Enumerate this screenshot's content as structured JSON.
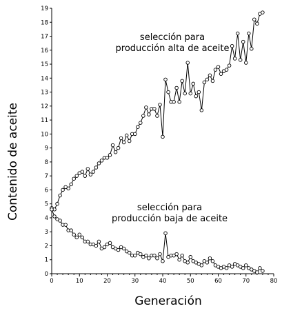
{
  "chart_data": {
    "type": "line",
    "xlabel": "Generación",
    "ylabel": "Contenido de aceite",
    "xlim": [
      0,
      80
    ],
    "ylim": [
      0,
      19
    ],
    "xticks": [
      0,
      10,
      20,
      30,
      40,
      50,
      60,
      70,
      80
    ],
    "yticks": [
      0,
      1,
      2,
      3,
      4,
      5,
      6,
      7,
      8,
      9,
      10,
      11,
      12,
      13,
      14,
      15,
      16,
      17,
      18,
      19
    ],
    "grid": false,
    "annotations": [
      {
        "series": "high",
        "lines": [
          "selección para",
          "producción alta de aceite"
        ]
      },
      {
        "series": "low",
        "lines": [
          "selección para",
          "producción baja de aceite"
        ]
      }
    ],
    "series": [
      {
        "key": "high",
        "x": [
          0,
          1,
          2,
          3,
          4,
          5,
          6,
          7,
          8,
          9,
          10,
          11,
          12,
          13,
          14,
          15,
          16,
          17,
          18,
          19,
          20,
          21,
          22,
          23,
          24,
          25,
          26,
          27,
          28,
          29,
          30,
          31,
          32,
          33,
          34,
          35,
          36,
          37,
          38,
          39,
          40,
          41,
          42,
          43,
          44,
          45,
          46,
          47,
          48,
          49,
          50,
          51,
          52,
          53,
          54,
          55,
          56,
          57,
          58,
          59,
          60,
          61,
          62,
          63,
          64,
          65,
          66,
          67,
          68,
          69,
          70,
          71,
          72,
          73,
          74,
          75,
          76
        ],
        "values": [
          4.7,
          4.6,
          5.0,
          5.6,
          6.0,
          6.2,
          6.1,
          6.4,
          6.8,
          7.0,
          7.2,
          7.3,
          7.0,
          7.5,
          7.1,
          7.3,
          7.6,
          7.9,
          8.1,
          8.3,
          8.3,
          8.5,
          9.2,
          8.7,
          9.0,
          9.7,
          9.4,
          9.9,
          9.5,
          10.0,
          10.0,
          10.5,
          10.8,
          11.3,
          11.9,
          11.4,
          11.8,
          11.8,
          11.3,
          12.1,
          9.8,
          13.9,
          13.0,
          12.3,
          12.3,
          13.3,
          12.3,
          13.8,
          12.9,
          15.1,
          12.9,
          13.6,
          12.7,
          13.0,
          11.7,
          13.7,
          13.9,
          14.2,
          13.8,
          14.6,
          14.8,
          14.3,
          14.5,
          14.6,
          14.9,
          16.3,
          15.4,
          17.2,
          15.3,
          16.6,
          15.1,
          17.2,
          16.1,
          18.2,
          17.9,
          18.6,
          18.7
        ]
      },
      {
        "key": "low",
        "x": [
          0,
          1,
          2,
          3,
          4,
          5,
          6,
          7,
          8,
          9,
          10,
          11,
          12,
          13,
          14,
          15,
          16,
          17,
          18,
          19,
          20,
          21,
          22,
          23,
          24,
          25,
          26,
          27,
          28,
          29,
          30,
          31,
          32,
          33,
          34,
          35,
          36,
          37,
          38,
          39,
          40,
          41,
          42,
          43,
          44,
          45,
          46,
          47,
          48,
          49,
          50,
          51,
          52,
          53,
          54,
          55,
          56,
          57,
          58,
          59,
          60,
          61,
          62,
          63,
          64,
          65,
          66,
          67,
          68,
          69,
          70,
          71,
          72,
          73,
          74,
          75,
          76
        ],
        "values": [
          4.6,
          4.1,
          3.9,
          3.8,
          3.5,
          3.5,
          3.1,
          3.1,
          2.8,
          2.6,
          2.8,
          2.6,
          2.3,
          2.3,
          2.1,
          2.1,
          2.0,
          2.3,
          1.8,
          1.9,
          2.1,
          2.2,
          1.9,
          1.8,
          1.7,
          1.9,
          1.8,
          1.6,
          1.5,
          1.3,
          1.3,
          1.5,
          1.4,
          1.2,
          1.3,
          1.1,
          1.3,
          1.3,
          1.1,
          1.4,
          0.9,
          2.9,
          1.2,
          1.3,
          1.3,
          1.4,
          1.0,
          1.3,
          0.9,
          0.8,
          1.2,
          0.9,
          0.8,
          0.7,
          0.6,
          0.9,
          0.8,
          1.1,
          0.9,
          0.6,
          0.5,
          0.4,
          0.5,
          0.4,
          0.6,
          0.5,
          0.7,
          0.6,
          0.5,
          0.4,
          0.6,
          0.4,
          0.3,
          0.2,
          0.1,
          0.4,
          0.2
        ]
      }
    ]
  }
}
